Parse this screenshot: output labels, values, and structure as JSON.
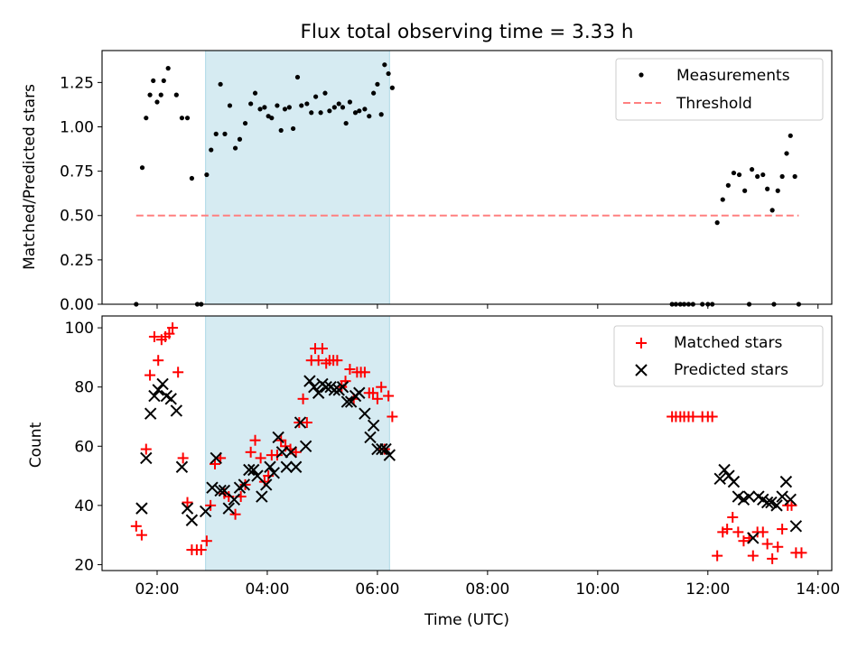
{
  "chart_data": [
    {
      "type": "scatter",
      "title": "Flux total observing time = 3.33 h",
      "xlabel": "",
      "ylabel": "Matched/Predicted stars",
      "xlim": [
        1.0,
        14.25
      ],
      "ylim": [
        0,
        1.43
      ],
      "yticks": [
        0,
        0.25,
        0.5,
        0.75,
        1.0,
        1.25
      ],
      "ytick_labels": [
        "0.00",
        "0.25",
        "0.50",
        "0.75",
        "1.00",
        "1.25"
      ],
      "shaded_interval": [
        2.88,
        6.22
      ],
      "legend": {
        "position": "top-right",
        "entries": [
          "Measurements",
          "Threshold"
        ]
      },
      "threshold": {
        "name": "Threshold",
        "value": 0.5,
        "x_range": [
          1.62,
          13.65
        ],
        "color": "#ff8080"
      },
      "series": [
        {
          "name": "Measurements",
          "color": "#000000",
          "points": [
            [
              1.62,
              0
            ],
            [
              1.73,
              0.77
            ],
            [
              1.8,
              1.05
            ],
            [
              1.87,
              1.18
            ],
            [
              1.93,
              1.26
            ],
            [
              2.0,
              1.14
            ],
            [
              2.07,
              1.18
            ],
            [
              2.12,
              1.26
            ],
            [
              2.2,
              1.33
            ],
            [
              2.35,
              1.18
            ],
            [
              2.45,
              1.05
            ],
            [
              2.55,
              1.05
            ],
            [
              2.63,
              0.71
            ],
            [
              2.73,
              0
            ],
            [
              2.8,
              0
            ],
            [
              2.9,
              0.73
            ],
            [
              2.98,
              0.87
            ],
            [
              3.07,
              0.96
            ],
            [
              3.15,
              1.24
            ],
            [
              3.23,
              0.96
            ],
            [
              3.32,
              1.12
            ],
            [
              3.42,
              0.88
            ],
            [
              3.5,
              0.93
            ],
            [
              3.6,
              1.02
            ],
            [
              3.7,
              1.13
            ],
            [
              3.78,
              1.19
            ],
            [
              3.87,
              1.1
            ],
            [
              3.95,
              1.11
            ],
            [
              4.02,
              1.06
            ],
            [
              4.08,
              1.05
            ],
            [
              4.18,
              1.12
            ],
            [
              4.25,
              0.98
            ],
            [
              4.32,
              1.1
            ],
            [
              4.4,
              1.11
            ],
            [
              4.47,
              0.99
            ],
            [
              4.55,
              1.28
            ],
            [
              4.62,
              1.12
            ],
            [
              4.72,
              1.13
            ],
            [
              4.8,
              1.08
            ],
            [
              4.88,
              1.17
            ],
            [
              4.97,
              1.08
            ],
            [
              5.05,
              1.19
            ],
            [
              5.13,
              1.09
            ],
            [
              5.22,
              1.11
            ],
            [
              5.3,
              1.13
            ],
            [
              5.37,
              1.11
            ],
            [
              5.43,
              1.02
            ],
            [
              5.5,
              1.14
            ],
            [
              5.6,
              1.08
            ],
            [
              5.67,
              1.09
            ],
            [
              5.77,
              1.1
            ],
            [
              5.85,
              1.06
            ],
            [
              5.93,
              1.19
            ],
            [
              6.0,
              1.24
            ],
            [
              6.07,
              1.07
            ],
            [
              6.13,
              1.35
            ],
            [
              6.2,
              1.3
            ],
            [
              6.27,
              1.22
            ],
            [
              11.35,
              0
            ],
            [
              11.42,
              0
            ],
            [
              11.5,
              0
            ],
            [
              11.57,
              0
            ],
            [
              11.65,
              0
            ],
            [
              11.73,
              0
            ],
            [
              11.9,
              0
            ],
            [
              12.0,
              0
            ],
            [
              12.08,
              0
            ],
            [
              12.17,
              0.46
            ],
            [
              12.27,
              0.59
            ],
            [
              12.37,
              0.67
            ],
            [
              12.47,
              0.74
            ],
            [
              12.57,
              0.73
            ],
            [
              12.67,
              0.64
            ],
            [
              12.8,
              0.76
            ],
            [
              12.9,
              0.72
            ],
            [
              13.0,
              0.73
            ],
            [
              13.08,
              0.65
            ],
            [
              13.17,
              0.53
            ],
            [
              13.27,
              0.64
            ],
            [
              13.35,
              0.72
            ],
            [
              13.43,
              0.85
            ],
            [
              13.5,
              0.95
            ],
            [
              13.58,
              0.72
            ],
            [
              13.2,
              0
            ],
            [
              12.75,
              0
            ],
            [
              13.65,
              0
            ]
          ]
        }
      ]
    },
    {
      "type": "scatter",
      "title": "",
      "xlabel": "Time (UTC)",
      "ylabel": "Count",
      "xlim": [
        1.0,
        14.25
      ],
      "ylim": [
        18,
        104
      ],
      "yticks": [
        20,
        40,
        60,
        80,
        100
      ],
      "ytick_labels": [
        "20",
        "40",
        "60",
        "80",
        "100"
      ],
      "xticks": [
        2,
        4,
        6,
        8,
        10,
        12,
        14
      ],
      "xtick_labels": [
        "02:00",
        "04:00",
        "06:00",
        "08:00",
        "10:00",
        "12:00",
        "14:00"
      ],
      "shaded_interval": [
        2.88,
        6.22
      ],
      "legend": {
        "position": "top-right",
        "entries": [
          "Matched stars",
          "Predicted stars"
        ]
      },
      "series": [
        {
          "name": "Matched stars",
          "marker": "plus",
          "color": "#ff0000",
          "points": [
            [
              1.62,
              33
            ],
            [
              1.72,
              30
            ],
            [
              1.8,
              59
            ],
            [
              1.87,
              84
            ],
            [
              1.95,
              97
            ],
            [
              2.02,
              89
            ],
            [
              2.08,
              96
            ],
            [
              2.15,
              97
            ],
            [
              2.22,
              98
            ],
            [
              2.28,
              100
            ],
            [
              2.38,
              85
            ],
            [
              2.47,
              56
            ],
            [
              2.55,
              41
            ],
            [
              2.63,
              25
            ],
            [
              2.72,
              25
            ],
            [
              2.8,
              25
            ],
            [
              2.9,
              28
            ],
            [
              2.97,
              40
            ],
            [
              3.05,
              54
            ],
            [
              3.15,
              56
            ],
            [
              3.22,
              44
            ],
            [
              3.3,
              43
            ],
            [
              3.42,
              37
            ],
            [
              3.52,
              43
            ],
            [
              3.6,
              47
            ],
            [
              3.7,
              58
            ],
            [
              3.78,
              62
            ],
            [
              3.88,
              56
            ],
            [
              3.95,
              48
            ],
            [
              4.02,
              50
            ],
            [
              4.08,
              57
            ],
            [
              4.18,
              57
            ],
            [
              4.25,
              62
            ],
            [
              4.33,
              60
            ],
            [
              4.42,
              59
            ],
            [
              4.52,
              58
            ],
            [
              4.58,
              68
            ],
            [
              4.65,
              76
            ],
            [
              4.72,
              68
            ],
            [
              4.8,
              89
            ],
            [
              4.87,
              93
            ],
            [
              4.93,
              89
            ],
            [
              5.0,
              93
            ],
            [
              5.07,
              88
            ],
            [
              5.13,
              89
            ],
            [
              5.2,
              89
            ],
            [
              5.27,
              89
            ],
            [
              5.35,
              80
            ],
            [
              5.42,
              82
            ],
            [
              5.5,
              86
            ],
            [
              5.57,
              76
            ],
            [
              5.63,
              85
            ],
            [
              5.7,
              85
            ],
            [
              5.77,
              85
            ],
            [
              5.85,
              78
            ],
            [
              5.92,
              78
            ],
            [
              6.0,
              76
            ],
            [
              6.07,
              80
            ],
            [
              6.13,
              59
            ],
            [
              6.2,
              77
            ],
            [
              6.27,
              70
            ],
            [
              11.35,
              70
            ],
            [
              11.42,
              70
            ],
            [
              11.5,
              70
            ],
            [
              11.57,
              70
            ],
            [
              11.65,
              70
            ],
            [
              11.73,
              70
            ],
            [
              11.9,
              70
            ],
            [
              12.0,
              70
            ],
            [
              12.08,
              70
            ],
            [
              12.17,
              23
            ],
            [
              12.27,
              31
            ],
            [
              12.35,
              32
            ],
            [
              12.45,
              36
            ],
            [
              12.55,
              31
            ],
            [
              12.65,
              28
            ],
            [
              12.75,
              29
            ],
            [
              12.82,
              23
            ],
            [
              12.9,
              31
            ],
            [
              13.0,
              31
            ],
            [
              13.08,
              27
            ],
            [
              13.17,
              22
            ],
            [
              13.27,
              26
            ],
            [
              13.35,
              32
            ],
            [
              13.45,
              40
            ],
            [
              13.52,
              40
            ],
            [
              13.6,
              24
            ],
            [
              13.7,
              24
            ]
          ]
        },
        {
          "name": "Predicted stars",
          "marker": "x",
          "color": "#000000",
          "points": [
            [
              1.72,
              39
            ],
            [
              1.8,
              56
            ],
            [
              1.88,
              71
            ],
            [
              1.95,
              77
            ],
            [
              2.02,
              79
            ],
            [
              2.1,
              81
            ],
            [
              2.17,
              77
            ],
            [
              2.25,
              76
            ],
            [
              2.35,
              72
            ],
            [
              2.45,
              53
            ],
            [
              2.55,
              39
            ],
            [
              2.63,
              35
            ],
            [
              2.88,
              38
            ],
            [
              3.0,
              46
            ],
            [
              3.07,
              56
            ],
            [
              3.15,
              45
            ],
            [
              3.22,
              45
            ],
            [
              3.3,
              39
            ],
            [
              3.4,
              42
            ],
            [
              3.5,
              46
            ],
            [
              3.58,
              47
            ],
            [
              3.67,
              52
            ],
            [
              3.75,
              52
            ],
            [
              3.82,
              50
            ],
            [
              3.9,
              43
            ],
            [
              3.98,
              47
            ],
            [
              4.05,
              53
            ],
            [
              4.12,
              51
            ],
            [
              4.2,
              63
            ],
            [
              4.27,
              58
            ],
            [
              4.35,
              53
            ],
            [
              4.43,
              58
            ],
            [
              4.52,
              53
            ],
            [
              4.6,
              68
            ],
            [
              4.7,
              60
            ],
            [
              4.77,
              82
            ],
            [
              4.85,
              80
            ],
            [
              4.93,
              78
            ],
            [
              5.0,
              81
            ],
            [
              5.07,
              80
            ],
            [
              5.15,
              80
            ],
            [
              5.22,
              79
            ],
            [
              5.3,
              79
            ],
            [
              5.37,
              80
            ],
            [
              5.45,
              75
            ],
            [
              5.52,
              75
            ],
            [
              5.6,
              77
            ],
            [
              5.67,
              78
            ],
            [
              5.77,
              71
            ],
            [
              5.87,
              63
            ],
            [
              5.93,
              67
            ],
            [
              6.0,
              59
            ],
            [
              6.08,
              59
            ],
            [
              6.15,
              59
            ],
            [
              6.22,
              57
            ],
            [
              12.22,
              49
            ],
            [
              12.3,
              52
            ],
            [
              12.38,
              50
            ],
            [
              12.47,
              48
            ],
            [
              12.55,
              43
            ],
            [
              12.65,
              42
            ],
            [
              12.75,
              43
            ],
            [
              12.82,
              29
            ],
            [
              12.92,
              43
            ],
            [
              13.0,
              42
            ],
            [
              13.08,
              41
            ],
            [
              13.15,
              41
            ],
            [
              13.25,
              40
            ],
            [
              13.35,
              43
            ],
            [
              13.42,
              48
            ],
            [
              13.5,
              42
            ],
            [
              13.6,
              33
            ]
          ]
        }
      ]
    }
  ]
}
